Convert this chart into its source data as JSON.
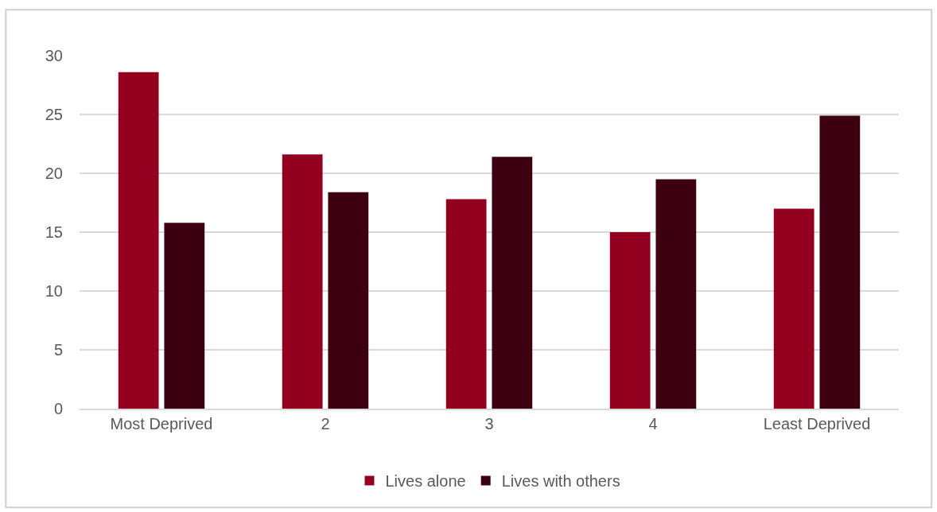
{
  "chart_data": {
    "type": "bar",
    "categories": [
      "Most Deprived",
      "2",
      "3",
      "4",
      "Least Deprived"
    ],
    "series": [
      {
        "name": "Lives alone",
        "color": "#93001f",
        "values": [
          28.6,
          21.6,
          17.8,
          15.0,
          17.0
        ]
      },
      {
        "name": "Lives with others",
        "color": "#3c0010",
        "values": [
          15.8,
          18.4,
          21.4,
          19.5,
          24.9
        ]
      }
    ],
    "ylim": [
      0,
      30
    ],
    "yticks": [
      0,
      5,
      10,
      15,
      20,
      25,
      30
    ],
    "grid": "y",
    "legend": "bottom"
  }
}
